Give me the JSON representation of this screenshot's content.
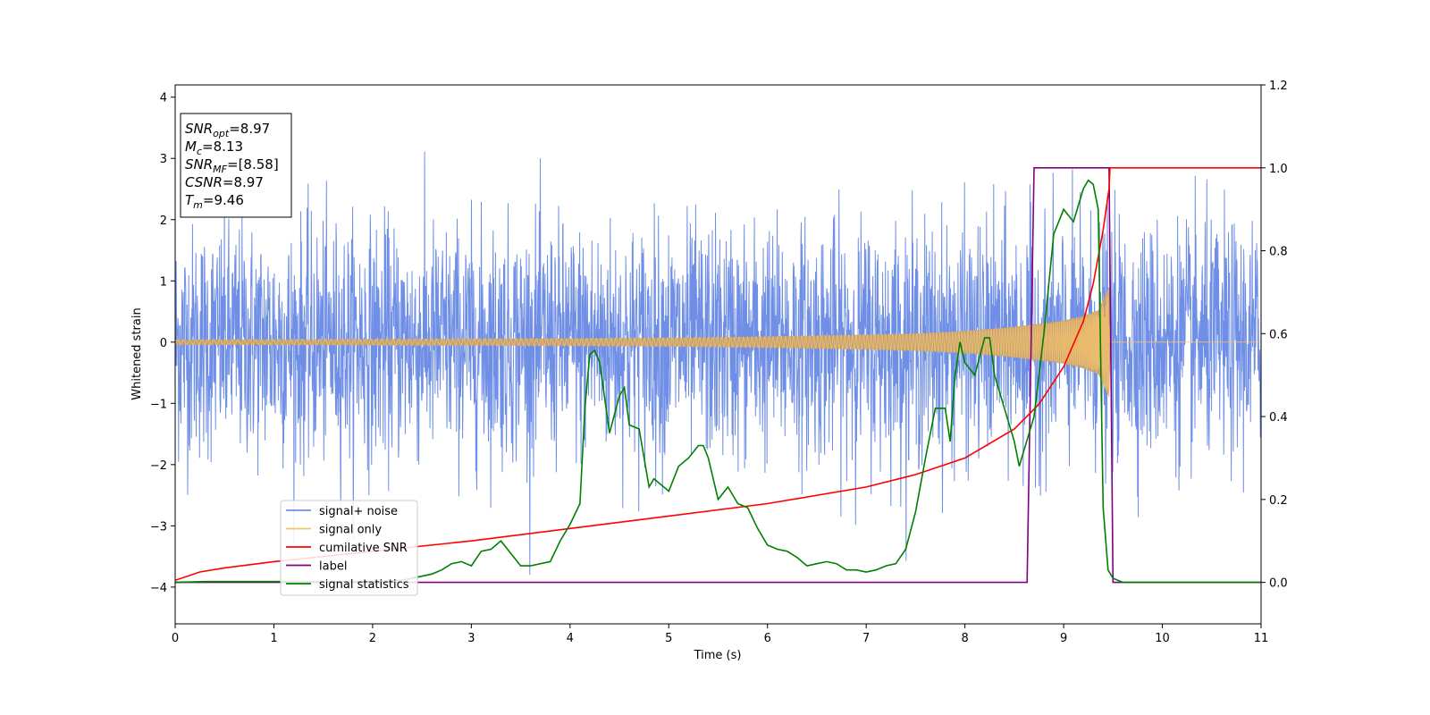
{
  "chart_data": {
    "type": "line",
    "title": "",
    "xlabel": "Time (s)",
    "ylabel": "Whitened strain",
    "xlim": [
      0,
      11
    ],
    "ylim_left": [
      -4.6,
      4.2
    ],
    "ylim_right": [
      -0.1,
      1.2
    ],
    "x_ticks": [
      0,
      1,
      2,
      3,
      4,
      5,
      6,
      7,
      8,
      9,
      10,
      11
    ],
    "y_left_ticks": [
      -4,
      -3,
      -2,
      -1,
      0,
      1,
      2,
      3,
      4
    ],
    "y_right_ticks": [
      0.0,
      0.2,
      0.4,
      0.6,
      0.8,
      1.0,
      1.2
    ],
    "grid": false,
    "legend_position": "lower-left",
    "colors": {
      "signal_noise": "#6f8fe6",
      "signal_only": "#f5c26b",
      "signal_band": "#c4a16f",
      "cumulative_snr": "#ff0000",
      "label": "#800080",
      "signal_statistics": "#008000"
    },
    "series": [
      {
        "name": "signal+ noise",
        "axis": "left",
        "style": "dense noise, approx. amplitude band -2 to 2 with spikes to ±3.8",
        "noise_envelope_typical": 2.0,
        "noise_spike_max": 3.8,
        "x_range": [
          0,
          11
        ]
      },
      {
        "name": "signal only",
        "axis": "left",
        "style": "chirp, amplitude growing until merger",
        "envelope": {
          "x": [
            0,
            2,
            4,
            5,
            6,
            7,
            7.5,
            8,
            8.5,
            9,
            9.2,
            9.35,
            9.46,
            9.47,
            11
          ],
          "amp": [
            0.04,
            0.05,
            0.06,
            0.07,
            0.09,
            0.12,
            0.14,
            0.18,
            0.25,
            0.35,
            0.43,
            0.52,
            0.9,
            0.0,
            0.0
          ]
        },
        "x_range": [
          0,
          11
        ]
      },
      {
        "name": "cumilative SNR",
        "axis": "right",
        "x": [
          0,
          0.25,
          0.5,
          1,
          2,
          3,
          4,
          5,
          6,
          7,
          7.5,
          8,
          8.5,
          8.75,
          9,
          9.2,
          9.3,
          9.4,
          9.46,
          9.47,
          11
        ],
        "y": [
          0.005,
          0.025,
          0.035,
          0.05,
          0.075,
          0.1,
          0.13,
          0.16,
          0.19,
          0.23,
          0.26,
          0.3,
          0.37,
          0.43,
          0.52,
          0.63,
          0.72,
          0.85,
          0.95,
          1.0,
          1.0
        ]
      },
      {
        "name": "label",
        "axis": "right",
        "x": [
          0,
          8.63,
          8.7,
          9.45,
          9.46,
          9.5,
          11
        ],
        "y": [
          0,
          0,
          1,
          1,
          1,
          0,
          0
        ]
      },
      {
        "name": "signal statistics",
        "axis": "right",
        "x": [
          0,
          0.3,
          1,
          2,
          2.3,
          2.6,
          2.7,
          2.8,
          2.9,
          3.0,
          3.1,
          3.2,
          3.3,
          3.4,
          3.5,
          3.6,
          3.7,
          3.8,
          3.9,
          4.0,
          4.1,
          4.15,
          4.2,
          4.25,
          4.3,
          4.4,
          4.5,
          4.55,
          4.6,
          4.7,
          4.8,
          4.85,
          4.9,
          5.0,
          5.1,
          5.2,
          5.3,
          5.35,
          5.4,
          5.5,
          5.6,
          5.7,
          5.8,
          5.9,
          6.0,
          6.1,
          6.2,
          6.3,
          6.4,
          6.5,
          6.6,
          6.7,
          6.8,
          6.9,
          7.0,
          7.1,
          7.2,
          7.3,
          7.4,
          7.5,
          7.6,
          7.7,
          7.8,
          7.85,
          7.9,
          7.95,
          8.0,
          8.1,
          8.2,
          8.25,
          8.3,
          8.4,
          8.5,
          8.55,
          8.6,
          8.7,
          8.8,
          8.9,
          9.0,
          9.1,
          9.2,
          9.25,
          9.3,
          9.35,
          9.4,
          9.45,
          9.5,
          9.6,
          10,
          11
        ],
        "y": [
          0.0,
          0.002,
          0.002,
          0.002,
          0.005,
          0.02,
          0.03,
          0.045,
          0.05,
          0.04,
          0.075,
          0.08,
          0.1,
          0.07,
          0.04,
          0.04,
          0.045,
          0.05,
          0.1,
          0.14,
          0.19,
          0.42,
          0.55,
          0.56,
          0.53,
          0.36,
          0.45,
          0.47,
          0.38,
          0.37,
          0.23,
          0.25,
          0.24,
          0.22,
          0.28,
          0.3,
          0.33,
          0.33,
          0.3,
          0.2,
          0.23,
          0.19,
          0.18,
          0.13,
          0.09,
          0.08,
          0.075,
          0.06,
          0.04,
          0.045,
          0.05,
          0.045,
          0.03,
          0.03,
          0.025,
          0.03,
          0.04,
          0.045,
          0.08,
          0.17,
          0.3,
          0.42,
          0.42,
          0.34,
          0.5,
          0.58,
          0.53,
          0.5,
          0.59,
          0.59,
          0.5,
          0.42,
          0.34,
          0.28,
          0.32,
          0.4,
          0.6,
          0.84,
          0.9,
          0.87,
          0.95,
          0.97,
          0.96,
          0.9,
          0.18,
          0.03,
          0.01,
          0.0,
          0.0,
          0.0
        ]
      }
    ],
    "annotation_box": {
      "lines": [
        {
          "label": "SNR",
          "sub": "opt",
          "value": "=8.97"
        },
        {
          "label": "M",
          "sub": "c",
          "value": "=8.13"
        },
        {
          "label": "SNR",
          "sub": "MF",
          "value": "=[8.58]"
        },
        {
          "label": "CSNR",
          "sub": "",
          "value": "=8.97"
        },
        {
          "label": "T",
          "sub": "m",
          "value": "=9.46"
        }
      ]
    }
  }
}
